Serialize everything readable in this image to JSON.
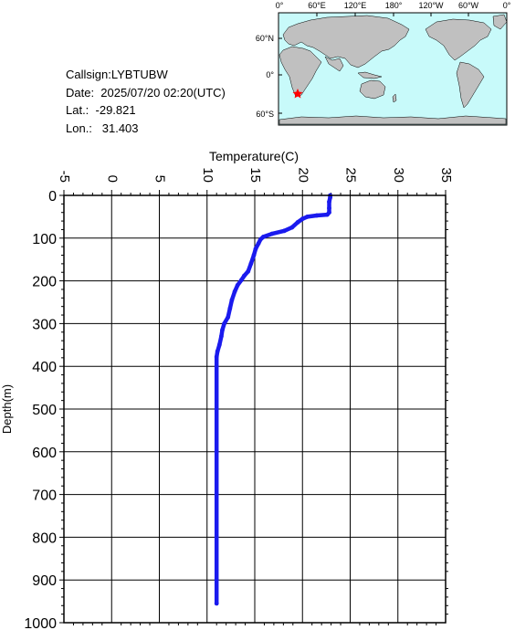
{
  "station": {
    "callsign": "Callsign:LYBTUBW",
    "date": "Date:  2025/07/20 02:20(UTC)",
    "lat": "Lat.:  -29.821",
    "lon": "Lon.:   31.403"
  },
  "map": {
    "lon_labels": [
      "0°",
      "60°E",
      "120°E",
      "180°",
      "120°W",
      "60°W",
      "0°"
    ],
    "lat_labels": [
      "60°N",
      "0°",
      "60°S"
    ],
    "ocean_color": "#c8fafa",
    "land_color": "#c0c0c0",
    "marker": {
      "lat": -29.821,
      "lon": 31.403,
      "color": "#ff0000",
      "icon": "star-icon"
    }
  },
  "chart_data": {
    "type": "line",
    "xlabel": "Temperature(C)",
    "ylabel": "Depth(m)",
    "xlim": [
      -5,
      35
    ],
    "ylim": [
      1000,
      0
    ],
    "xticks": [
      -5,
      0,
      5,
      10,
      15,
      20,
      25,
      30,
      35
    ],
    "yticks": [
      0,
      100,
      200,
      300,
      400,
      500,
      600,
      700,
      800,
      900,
      1000
    ],
    "grid": true,
    "series": [
      {
        "color": "#1a1aee",
        "points": [
          [
            22.9,
            0
          ],
          [
            22.9,
            5
          ],
          [
            22.8,
            15
          ],
          [
            22.8,
            30
          ],
          [
            22.8,
            40
          ],
          [
            22.6,
            45
          ],
          [
            21.5,
            47
          ],
          [
            20.5,
            50
          ],
          [
            20.0,
            55
          ],
          [
            19.5,
            63
          ],
          [
            18.9,
            75
          ],
          [
            18.1,
            83
          ],
          [
            16.8,
            90
          ],
          [
            15.9,
            97
          ],
          [
            15.6,
            103
          ],
          [
            15.4,
            112
          ],
          [
            15.1,
            125
          ],
          [
            14.9,
            140
          ],
          [
            14.6,
            160
          ],
          [
            14.3,
            178
          ],
          [
            13.9,
            188
          ],
          [
            13.6,
            198
          ],
          [
            13.2,
            210
          ],
          [
            12.9,
            225
          ],
          [
            12.6,
            245
          ],
          [
            12.4,
            265
          ],
          [
            12.2,
            285
          ],
          [
            11.8,
            300
          ],
          [
            11.6,
            315
          ],
          [
            11.5,
            330
          ],
          [
            11.3,
            350
          ],
          [
            11.1,
            365
          ],
          [
            11.0,
            378
          ],
          [
            11.0,
            400
          ],
          [
            11.0,
            500
          ],
          [
            11.0,
            600
          ],
          [
            11.0,
            700
          ],
          [
            11.0,
            800
          ],
          [
            11.0,
            900
          ],
          [
            11.0,
            955
          ]
        ]
      }
    ]
  }
}
